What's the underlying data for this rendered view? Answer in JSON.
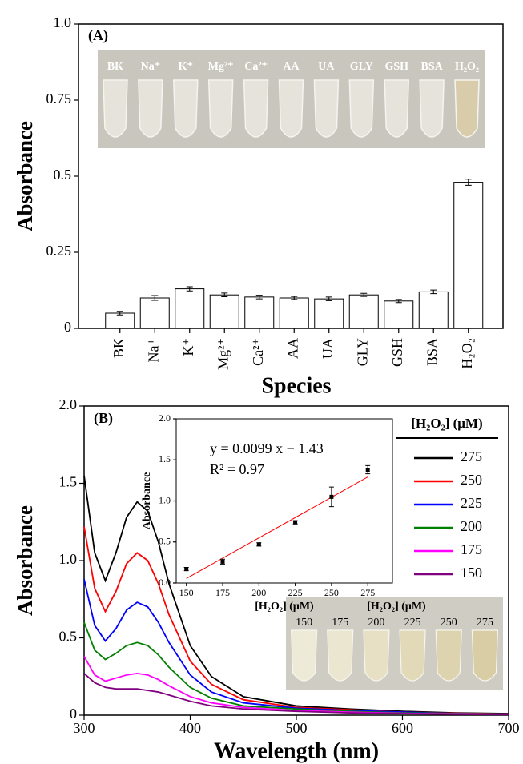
{
  "chart_data": [
    {
      "type": "bar",
      "panel_label": "(A)",
      "y_label": "Absorbance",
      "x_label": "Species",
      "categories": [
        "BK",
        "Na⁺",
        "K⁺",
        "Mg²⁺",
        "Ca²⁺",
        "AA",
        "UA",
        "GLY",
        "GSH",
        "BSA",
        "H₂O₂"
      ],
      "values": [
        0.05,
        0.1,
        0.13,
        0.11,
        0.103,
        0.1,
        0.097,
        0.11,
        0.09,
        0.12,
        0.48
      ],
      "errors": [
        0.006,
        0.008,
        0.007,
        0.006,
        0.006,
        0.005,
        0.006,
        0.005,
        0.005,
        0.006,
        0.01
      ],
      "color": "#ffffff",
      "ylim": [
        0,
        1
      ],
      "yticks": [
        0,
        0.25,
        0.5,
        0.75,
        {
          "value": 1,
          "label": "1.0"
        }
      ],
      "inset_labels": [
        "BK",
        "Na⁺",
        "K⁺",
        "Mg²⁺",
        "Ca²⁺",
        "AA",
        "UA",
        "GLY",
        "GSH",
        "BSA",
        "H₂O₂"
      ]
    },
    {
      "type": "line",
      "panel_label": "(B)",
      "y_label": "Absorbance",
      "x_label": "Wavelength (nm)",
      "legend_title": "[H₂O₂] (μM)",
      "legend": "right",
      "x": [
        300,
        310,
        320,
        330,
        340,
        350,
        360,
        370,
        380,
        400,
        420,
        450,
        500,
        550,
        600,
        650,
        700
      ],
      "series": [
        {
          "name": "275",
          "color": "#000000",
          "values": [
            1.55,
            1.05,
            0.87,
            1.05,
            1.28,
            1.38,
            1.32,
            1.12,
            0.85,
            0.45,
            0.25,
            0.12,
            0.06,
            0.04,
            0.025,
            0.015,
            0.01
          ]
        },
        {
          "name": "250",
          "color": "#ff0000",
          "values": [
            1.22,
            0.82,
            0.67,
            0.8,
            0.98,
            1.05,
            1.0,
            0.85,
            0.65,
            0.35,
            0.2,
            0.1,
            0.05,
            0.035,
            0.02,
            0.012,
            0.008
          ]
        },
        {
          "name": "225",
          "color": "#0000ff",
          "values": [
            0.88,
            0.58,
            0.48,
            0.56,
            0.68,
            0.73,
            0.7,
            0.6,
            0.47,
            0.26,
            0.15,
            0.08,
            0.045,
            0.03,
            0.02,
            0.01,
            0.007
          ]
        },
        {
          "name": "200",
          "color": "#008000",
          "values": [
            0.6,
            0.42,
            0.36,
            0.4,
            0.45,
            0.47,
            0.45,
            0.39,
            0.31,
            0.18,
            0.11,
            0.06,
            0.04,
            0.025,
            0.015,
            0.01,
            0.006
          ]
        },
        {
          "name": "175",
          "color": "#ff00ff",
          "values": [
            0.38,
            0.26,
            0.22,
            0.24,
            0.26,
            0.27,
            0.26,
            0.23,
            0.19,
            0.12,
            0.08,
            0.05,
            0.03,
            0.02,
            0.012,
            0.008,
            0.005
          ]
        },
        {
          "name": "150",
          "color": "#800080",
          "values": [
            0.27,
            0.21,
            0.18,
            0.17,
            0.17,
            0.17,
            0.16,
            0.15,
            0.13,
            0.09,
            0.06,
            0.04,
            0.025,
            0.015,
            0.01,
            0.006,
            0.004
          ]
        }
      ],
      "xlim": [
        300,
        700
      ],
      "xticks": [
        300,
        400,
        500,
        600,
        700
      ],
      "ylim": [
        0,
        2
      ],
      "yticks": [
        0,
        0.5,
        {
          "value": 1,
          "label": "1.0"
        },
        1.5,
        {
          "value": 2,
          "label": "2.0"
        }
      ],
      "inset_title": "[H₂O₂] (μM)",
      "inset_labels": [
        "150",
        "175",
        "200",
        "225",
        "250",
        "275"
      ]
    },
    {
      "type": "scatter",
      "y_label": "Absorbance",
      "x_label": "[H₂O₂] (μM)",
      "x": [
        150,
        175,
        200,
        225,
        250,
        275
      ],
      "values": [
        0.17,
        0.26,
        0.47,
        0.74,
        1.05,
        1.38
      ],
      "errors": [
        0.02,
        0.03,
        0.02,
        0.02,
        0.12,
        0.05
      ],
      "color": "#000000",
      "fit": {
        "slope": 0.0099,
        "intercept": -1.43,
        "color": "#ff0000",
        "equation": "y = 0.0099 x − 1.43",
        "r2": "R² = 0.97"
      },
      "xlim": [
        143,
        292
      ],
      "xticks": [
        150,
        175,
        200,
        225,
        250,
        275
      ],
      "ylim": [
        0,
        2
      ],
      "yticks": [
        {
          "value": 0,
          "label": "0.0"
        },
        0.5,
        {
          "value": 1,
          "label": "1.0"
        },
        1.5,
        {
          "value": 2,
          "label": "2.0"
        }
      ]
    }
  ]
}
